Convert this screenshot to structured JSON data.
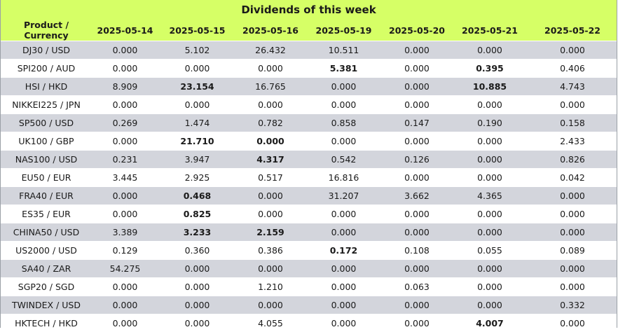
{
  "title": "Dividends of this week",
  "columns": [
    "Product / Currency",
    "2025-05-14",
    "2025-05-15",
    "2025-05-16",
    "2025-05-19",
    "2025-05-20",
    "2025-05-21",
    "2025-05-22"
  ],
  "rows": [
    {
      "product": "DJ30 / USD",
      "values": [
        "0.000",
        "5.102",
        "26.432",
        "10.511",
        "0.000",
        "0.000",
        "0.000"
      ],
      "bold": []
    },
    {
      "product": "SPI200 / AUD",
      "values": [
        "0.000",
        "0.000",
        "0.000",
        "5.381",
        "0.000",
        "0.395",
        "0.406"
      ],
      "bold": [
        3,
        5
      ]
    },
    {
      "product": "HSI / HKD",
      "values": [
        "8.909",
        "23.154",
        "16.765",
        "0.000",
        "0.000",
        "10.885",
        "4.743"
      ],
      "bold": [
        1,
        5
      ]
    },
    {
      "product": "NIKKEI225 / JPN",
      "values": [
        "0.000",
        "0.000",
        "0.000",
        "0.000",
        "0.000",
        "0.000",
        "0.000"
      ],
      "bold": []
    },
    {
      "product": "SP500 / USD",
      "values": [
        "0.269",
        "1.474",
        "0.782",
        "0.858",
        "0.147",
        "0.190",
        "0.158"
      ],
      "bold": []
    },
    {
      "product": "UK100 / GBP",
      "values": [
        "0.000",
        "21.710",
        "0.000",
        "0.000",
        "0.000",
        "0.000",
        "2.433"
      ],
      "bold": [
        1,
        2
      ]
    },
    {
      "product": "NAS100 / USD",
      "values": [
        "0.231",
        "3.947",
        "4.317",
        "0.542",
        "0.126",
        "0.000",
        "0.826"
      ],
      "bold": [
        2
      ]
    },
    {
      "product": "EU50 / EUR",
      "values": [
        "3.445",
        "2.925",
        "0.517",
        "16.816",
        "0.000",
        "0.000",
        "0.042"
      ],
      "bold": []
    },
    {
      "product": "FRA40 / EUR",
      "values": [
        "0.000",
        "0.468",
        "0.000",
        "31.207",
        "3.662",
        "4.365",
        "0.000"
      ],
      "bold": [
        1
      ]
    },
    {
      "product": "ES35 / EUR",
      "values": [
        "0.000",
        "0.825",
        "0.000",
        "0.000",
        "0.000",
        "0.000",
        "0.000"
      ],
      "bold": [
        1
      ]
    },
    {
      "product": "CHINA50 / USD",
      "values": [
        "3.389",
        "3.233",
        "2.159",
        "0.000",
        "0.000",
        "0.000",
        "0.000"
      ],
      "bold": [
        1,
        2
      ]
    },
    {
      "product": "US2000 / USD",
      "values": [
        "0.129",
        "0.360",
        "0.386",
        "0.172",
        "0.108",
        "0.055",
        "0.089"
      ],
      "bold": [
        3
      ]
    },
    {
      "product": "SA40 / ZAR",
      "values": [
        "54.275",
        "0.000",
        "0.000",
        "0.000",
        "0.000",
        "0.000",
        "0.000"
      ],
      "bold": []
    },
    {
      "product": "SGP20 / SGD",
      "values": [
        "0.000",
        "0.000",
        "1.210",
        "0.000",
        "0.063",
        "0.000",
        "0.000"
      ],
      "bold": []
    },
    {
      "product": "TWINDEX / USD",
      "values": [
        "0.000",
        "0.000",
        "0.000",
        "0.000",
        "0.000",
        "0.000",
        "0.332"
      ],
      "bold": []
    },
    {
      "product": "HKTECH / HKD",
      "values": [
        "0.000",
        "0.000",
        "4.055",
        "0.000",
        "0.000",
        "4.007",
        "0.000"
      ],
      "bold": [
        5
      ]
    }
  ],
  "colors": {
    "header_bg": "#d6ff66",
    "row_odd_bg": "#d3d5dc",
    "row_even_bg": "#ffffff"
  }
}
